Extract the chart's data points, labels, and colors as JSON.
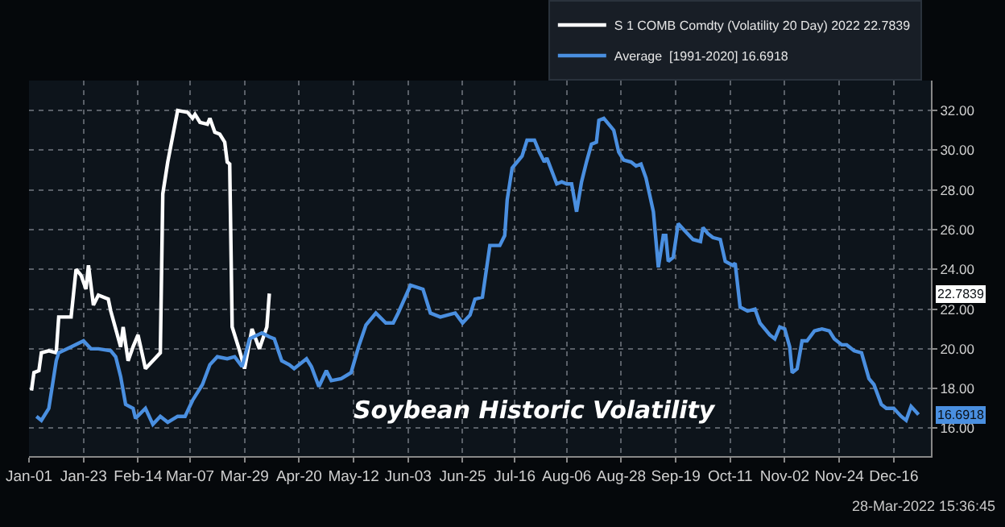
{
  "chart_data": {
    "type": "line",
    "title": "Soybean Historic Volatility",
    "series": [
      {
        "name": "S 1 COMB Comdty (Volatility 20 Day) 2022 22.7839",
        "color": "#ffffff",
        "x": [
          "--01-02",
          "--01-03",
          "--01-05",
          "--01-06",
          "--01-09",
          "--01-12",
          "--01-13",
          "--01-18",
          "--01-20",
          "--01-22",
          "--01-24",
          "--01-25",
          "--01-27",
          "--01-29",
          "--02-02",
          "--02-03",
          "--02-07",
          "--02-08",
          "--02-10",
          "--02-12",
          "--02-14",
          "--02-17",
          "--02-23",
          "--02-24",
          "--02-26",
          "--03-02",
          "--03-06",
          "--03-08",
          "--03-09",
          "--03-11",
          "--03-14",
          "--03-15",
          "--03-17",
          "--03-19",
          "--03-21",
          "--03-22",
          "--03-23",
          "--03-24",
          "--03-27",
          "--03-29",
          "--04-01",
          "--04-04",
          "--04-07",
          "--04-08"
        ],
        "values": [
          17.9,
          18.8,
          18.9,
          19.8,
          19.9,
          19.8,
          21.6,
          21.6,
          24.0,
          23.7,
          23.0,
          24.2,
          22.2,
          22.7,
          22.5,
          21.9,
          20.1,
          21.1,
          19.4,
          20.1,
          20.7,
          19.0,
          19.8,
          27.8,
          29.4,
          32.0,
          31.9,
          31.6,
          31.8,
          31.4,
          31.3,
          31.6,
          30.9,
          30.8,
          30.4,
          29.4,
          29.3,
          21.1,
          19.9,
          19.0,
          21.0,
          20.0,
          21.1,
          22.7839
        ]
      },
      {
        "name": "Average  [1991-2020] 16.6918",
        "color": "#4a8fe0",
        "x": [
          "--01-04",
          "--01-06",
          "--01-09",
          "--01-12",
          "--01-13",
          "--01-18",
          "--01-23",
          "--01-26",
          "--01-29",
          "--02-03",
          "--02-05",
          "--02-07",
          "--02-09",
          "--02-12",
          "--02-13",
          "--02-17",
          "--02-20",
          "--02-23",
          "--02-26",
          "--03-02",
          "--03-05",
          "--03-08",
          "--03-12",
          "--03-15",
          "--03-18",
          "--03-22",
          "--03-25",
          "--03-28",
          "--03-31",
          "--04-05",
          "--04-08",
          "--04-10",
          "--04-13",
          "--04-16",
          "--04-18",
          "--04-23",
          "--04-25",
          "--04-28",
          "--05-01",
          "--05-03",
          "--05-07",
          "--05-11",
          "--05-14",
          "--05-17",
          "--05-21",
          "--05-25",
          "--05-28",
          "--05-30",
          "--06-04",
          "--06-09",
          "--06-12",
          "--06-16",
          "--06-22",
          "--06-25",
          "--06-28",
          "--06-30",
          "--07-03",
          "--07-06",
          "--07-10",
          "--07-12",
          "--07-13",
          "--07-15",
          "--07-19",
          "--07-21",
          "--07-24",
          "--07-26",
          "--07-28",
          "--07-29",
          "--08-02",
          "--08-04",
          "--08-06",
          "--08-08",
          "--08-10",
          "--08-12",
          "--08-14",
          "--08-16",
          "--08-18",
          "--08-19",
          "--08-21",
          "--08-25",
          "--08-27",
          "--08-29",
          "--09-01",
          "--09-03",
          "--09-05",
          "--09-07",
          "--09-10",
          "--09-12",
          "--09-14",
          "--09-15",
          "--09-16",
          "--09-18",
          "--09-20",
          "--09-23",
          "--09-26",
          "--09-29",
          "--09-30",
          "--10-02",
          "--10-04",
          "--10-07",
          "--10-09",
          "--10-12",
          "--10-13",
          "--10-15",
          "--10-18",
          "--10-21",
          "--10-23",
          "--10-27",
          "--10-29",
          "--10-31",
          "--11-02",
          "--11-04",
          "--11-05",
          "--11-07",
          "--11-09",
          "--11-11",
          "--11-14",
          "--11-17",
          "--11-20",
          "--11-22",
          "--11-25",
          "--11-27",
          "--11-30",
          "--12-03",
          "--12-06",
          "--12-08",
          "--12-11",
          "--12-13",
          "--12-16",
          "--12-19",
          "--12-21",
          "--12-23",
          "--12-26"
        ],
        "values": [
          16.6,
          16.4,
          17.0,
          19.4,
          19.8,
          20.1,
          20.4,
          20.0,
          20.0,
          19.9,
          19.6,
          18.6,
          17.2,
          17.0,
          16.5,
          17.0,
          16.2,
          16.6,
          16.3,
          16.6,
          16.6,
          17.4,
          18.2,
          19.2,
          19.6,
          19.5,
          19.6,
          19.1,
          20.5,
          20.8,
          20.6,
          20.5,
          19.4,
          19.2,
          19.0,
          19.5,
          19.1,
          18.1,
          18.9,
          18.4,
          18.5,
          18.8,
          20.1,
          21.2,
          21.8,
          21.3,
          21.3,
          21.8,
          23.2,
          23.0,
          21.8,
          21.6,
          21.8,
          21.3,
          21.7,
          22.5,
          22.6,
          25.2,
          25.2,
          25.7,
          27.5,
          29.1,
          29.7,
          30.5,
          30.5,
          29.9,
          29.4,
          29.6,
          28.3,
          28.4,
          28.3,
          28.3,
          26.9,
          28.4,
          29.4,
          30.3,
          30.4,
          31.5,
          31.6,
          31.0,
          29.9,
          29.5,
          29.4,
          29.2,
          29.3,
          28.6,
          26.9,
          24.1,
          25.7,
          25.7,
          24.4,
          24.6,
          26.3,
          25.9,
          25.5,
          25.4,
          26.1,
          25.8,
          25.6,
          25.5,
          24.4,
          24.2,
          24.3,
          22.1,
          21.9,
          22.0,
          21.3,
          20.7,
          20.5,
          21.1,
          21.0,
          20.1,
          18.8,
          19.0,
          20.4,
          20.4,
          20.9,
          21.0,
          20.9,
          20.5,
          20.2,
          20.2,
          19.9,
          19.8,
          18.5,
          18.2,
          17.2,
          17.0,
          17.0,
          16.6,
          16.4,
          17.1,
          16.6918
        ]
      }
    ],
    "xlim": [
      "--01-01",
      "--12-31"
    ],
    "xticks": [
      {
        "value": "--01-01",
        "label": "Jan-01"
      },
      {
        "value": "--01-23",
        "label": "Jan-23"
      },
      {
        "value": "--02-14",
        "label": "Feb-14"
      },
      {
        "value": "--03-07",
        "label": "Mar-07"
      },
      {
        "value": "--03-29",
        "label": "Mar-29"
      },
      {
        "value": "--04-20",
        "label": "Apr-20"
      },
      {
        "value": "--05-12",
        "label": "May-12"
      },
      {
        "value": "--06-03",
        "label": "Jun-03"
      },
      {
        "value": "--06-25",
        "label": "Jun-25"
      },
      {
        "value": "--07-16",
        "label": "Jul-16"
      },
      {
        "value": "--08-06",
        "label": "Aug-06"
      },
      {
        "value": "--08-28",
        "label": "Aug-28"
      },
      {
        "value": "--09-19",
        "label": "Sep-19"
      },
      {
        "value": "--10-11",
        "label": "Oct-11"
      },
      {
        "value": "--11-02",
        "label": "Nov-02"
      },
      {
        "value": "--11-24",
        "label": "Nov-24"
      },
      {
        "value": "--12-16",
        "label": "Dec-16"
      }
    ],
    "ylim": [
      14.6,
      33.5
    ],
    "yticks": [
      {
        "value": 16,
        "label": "16.00"
      },
      {
        "value": 18,
        "label": "18.00"
      },
      {
        "value": 20,
        "label": "20.00"
      },
      {
        "value": 22,
        "label": "22.00"
      },
      {
        "value": 24,
        "label": "24.00"
      },
      {
        "value": 26,
        "label": "26.00"
      },
      {
        "value": 28,
        "label": "28.00"
      },
      {
        "value": 30,
        "label": "30.00"
      },
      {
        "value": 32,
        "label": "32.00"
      }
    ],
    "grid": true,
    "legend": "top right",
    "marker": "none",
    "line_style": "solid",
    "annotations": [
      "22.7839",
      "16.6918",
      "28-Mar-2022 15:36:45"
    ]
  }
}
